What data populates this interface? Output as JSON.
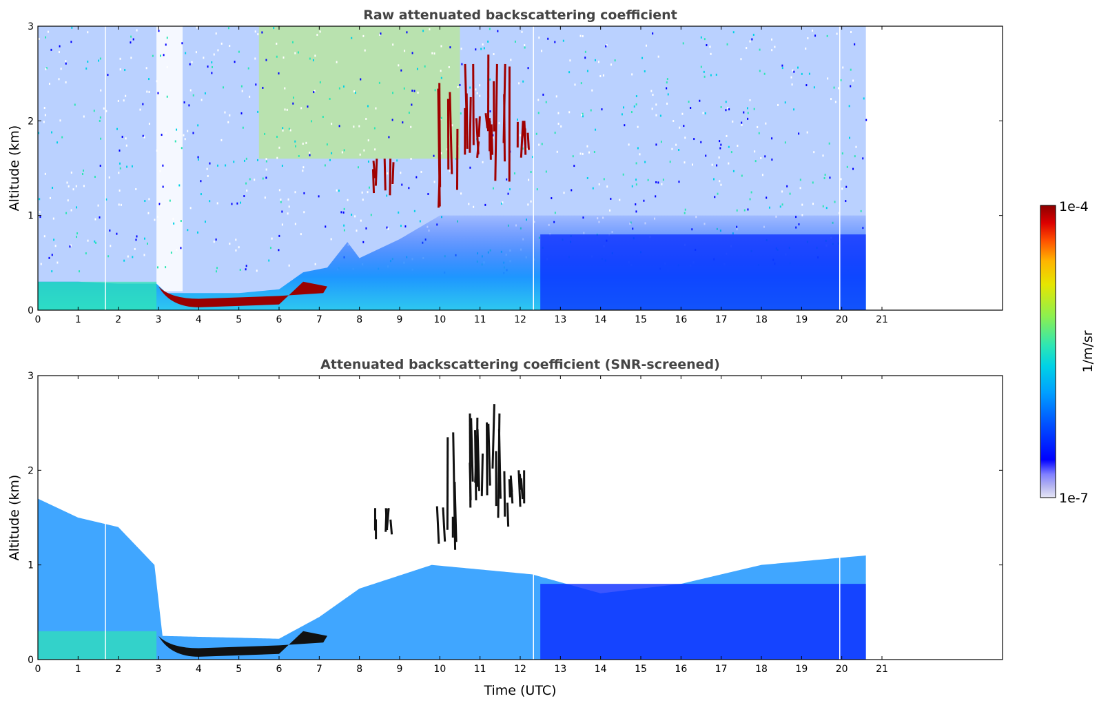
{
  "chart_data": [
    {
      "type": "heatmap",
      "title": "Raw attenuated backscattering coefficient",
      "xlabel": "",
      "ylabel": "Altitude (km)",
      "xlim": [
        0,
        24
      ],
      "ylim": [
        0,
        3
      ],
      "xticks": [
        "0",
        "1",
        "2",
        "3",
        "4",
        "5",
        "6",
        "7",
        "8",
        "9",
        "10",
        "11",
        "12",
        "13",
        "14",
        "15",
        "16",
        "17",
        "18",
        "19",
        "20",
        "21"
      ],
      "yticks": [
        "0",
        "1",
        "2",
        "3"
      ],
      "data_end_time": 20.6,
      "color_scale": "log",
      "boundary_layer_top_km": [
        {
          "x": 0,
          "y": 0.3
        },
        {
          "x": 1,
          "y": 0.3
        },
        {
          "x": 2,
          "y": 0.28
        },
        {
          "x": 2.95,
          "y": 0.28
        },
        {
          "x": 3.2,
          "y": 0.18
        },
        {
          "x": 4,
          "y": 0.18
        },
        {
          "x": 5,
          "y": 0.18
        },
        {
          "x": 6,
          "y": 0.22
        },
        {
          "x": 6.6,
          "y": 0.4
        },
        {
          "x": 7.2,
          "y": 0.45
        },
        {
          "x": 7.7,
          "y": 0.72
        },
        {
          "x": 8,
          "y": 0.55
        },
        {
          "x": 9,
          "y": 0.75
        },
        {
          "x": 10,
          "y": 1.0
        }
      ],
      "cloud_features": [
        {
          "time": 10.2,
          "base_km": 1.0,
          "top_km": 2.4
        },
        {
          "time": 10.8,
          "base_km": 1.5,
          "top_km": 2.6
        },
        {
          "time": 11.1,
          "base_km": 1.6,
          "top_km": 2.7
        },
        {
          "time": 11.5,
          "base_km": 1.3,
          "top_km": 2.6
        },
        {
          "time": 12.0,
          "base_km": 1.6,
          "top_km": 2.0
        },
        {
          "time": 8.6,
          "base_km": 1.2,
          "top_km": 1.6
        }
      ]
    },
    {
      "type": "heatmap",
      "title": "Attenuated backscattering coefficient (SNR-screened)",
      "xlabel": "Time (UTC)",
      "ylabel": "Altitude (km)",
      "xlim": [
        0,
        24
      ],
      "ylim": [
        0,
        3
      ],
      "xticks": [
        "0",
        "1",
        "2",
        "3",
        "4",
        "5",
        "6",
        "7",
        "8",
        "9",
        "10",
        "11",
        "12",
        "13",
        "14",
        "15",
        "16",
        "17",
        "18",
        "19",
        "20",
        "21"
      ],
      "yticks": [
        "0",
        "1",
        "2",
        "3"
      ],
      "data_end_time": 20.6,
      "color_scale": "log",
      "screened_signal_top_km": [
        {
          "x": 0,
          "y": 1.7
        },
        {
          "x": 1,
          "y": 1.5
        },
        {
          "x": 2,
          "y": 1.4
        },
        {
          "x": 2.9,
          "y": 1.0
        },
        {
          "x": 3.1,
          "y": 0.25
        },
        {
          "x": 6,
          "y": 0.22
        },
        {
          "x": 7,
          "y": 0.45
        },
        {
          "x": 8,
          "y": 0.75
        },
        {
          "x": 9.8,
          "y": 1.0
        },
        {
          "x": 12.3,
          "y": 0.9
        },
        {
          "x": 14,
          "y": 0.7
        },
        {
          "x": 16,
          "y": 0.8
        },
        {
          "x": 18,
          "y": 1.0
        },
        {
          "x": 20.6,
          "y": 1.1
        }
      ]
    }
  ],
  "colorbar": {
    "label": "1/m/sr",
    "max_label": "1e-4",
    "min_label": "1e-7",
    "colors": [
      "#e6e6f5",
      "#b4b4f0",
      "#8080ff",
      "#0000ff",
      "#0050ff",
      "#00a0ff",
      "#00d2e6",
      "#2de6b4",
      "#8cf050",
      "#e6e600",
      "#ffb400",
      "#ff5000",
      "#dc0000",
      "#8c0000"
    ]
  }
}
